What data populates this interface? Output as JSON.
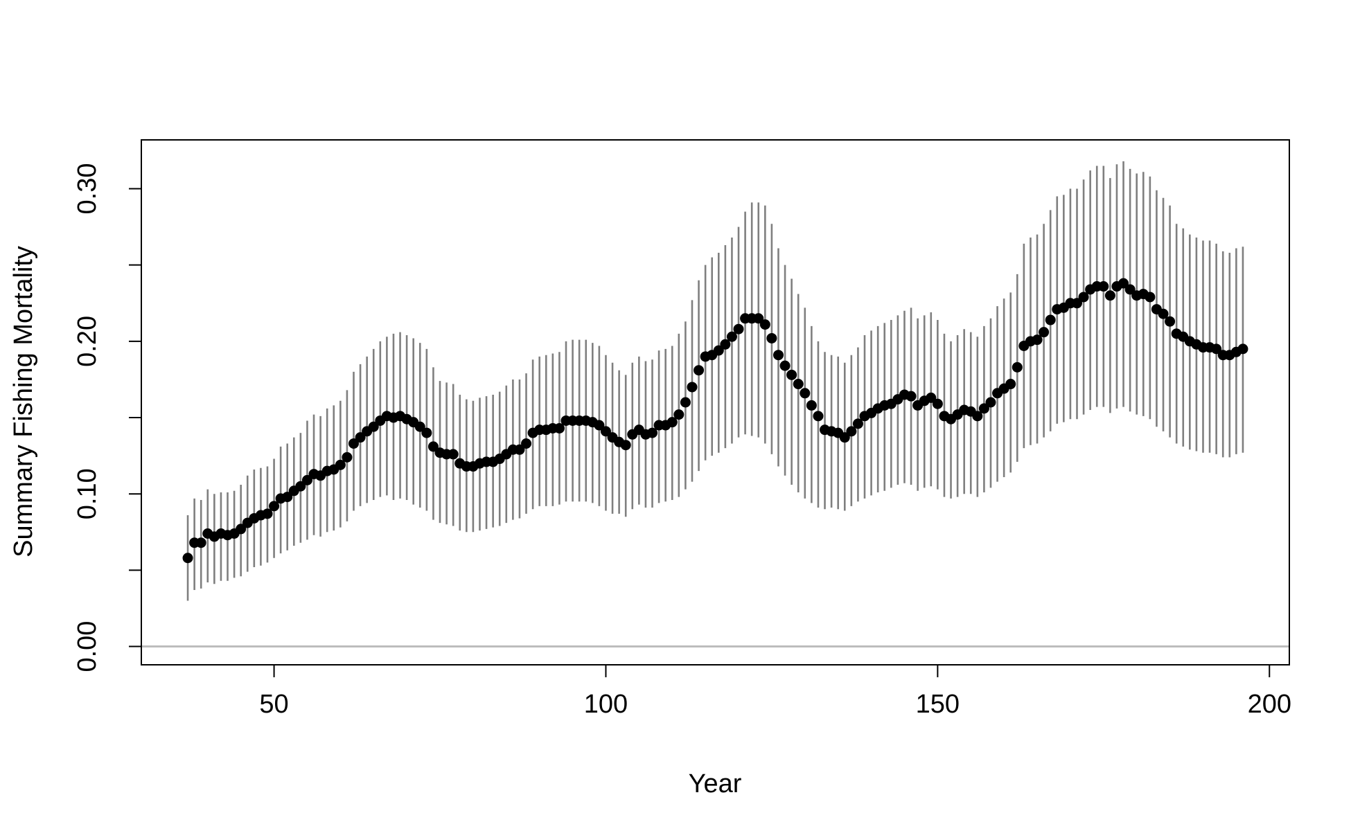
{
  "chart_data": {
    "type": "scatter",
    "title": "",
    "xlabel": "Year",
    "ylabel": "Summary Fishing Mortality",
    "xlim": [
      30,
      203
    ],
    "ylim": [
      -0.012,
      0.332
    ],
    "x_ticks": [
      50,
      100,
      150,
      200
    ],
    "x_tick_labels": [
      "50",
      "100",
      "150",
      "200"
    ],
    "y_ticks": [
      0.0,
      0.05,
      0.1,
      0.15,
      0.2,
      0.25,
      0.3
    ],
    "y_tick_labels": [
      "0.00",
      "",
      "0.10",
      "",
      "0.20",
      "",
      "0.30"
    ],
    "reference_line": {
      "y": 0,
      "color": "#bdbdbd"
    },
    "colors": {
      "points": "#000000",
      "error_bars": "#7f7f7f",
      "axes": "#000000"
    },
    "grid": false,
    "legend": "none",
    "series": [
      {
        "x": [
          37,
          38,
          39,
          40,
          41,
          42,
          43,
          44,
          45,
          46,
          47,
          48,
          49,
          50,
          51,
          52,
          53,
          54,
          55,
          56,
          57,
          58,
          59,
          60,
          61,
          62,
          63,
          64,
          65,
          66,
          67,
          68,
          69,
          70,
          71,
          72,
          73,
          74,
          75,
          76,
          77,
          78,
          79,
          80,
          81,
          82,
          83,
          84,
          85,
          86,
          87,
          88,
          89,
          90,
          91,
          92,
          93,
          94,
          95,
          96,
          97,
          98,
          99,
          100,
          101,
          102,
          103,
          104,
          105,
          106,
          107,
          108,
          109,
          110,
          111,
          112,
          113,
          114,
          115,
          116,
          117,
          118,
          119,
          120,
          121,
          122,
          123,
          124,
          125,
          126,
          127,
          128,
          129,
          130,
          131,
          132,
          133,
          134,
          135,
          136,
          137,
          138,
          139,
          140,
          141,
          142,
          143,
          144,
          145,
          146,
          147,
          148,
          149,
          150,
          151,
          152,
          153,
          154,
          155,
          156,
          157,
          158,
          159,
          160,
          161,
          162,
          163,
          164,
          165,
          166,
          167,
          168,
          169,
          170,
          171,
          172,
          173,
          174,
          175,
          176,
          177,
          178,
          179,
          180,
          181,
          182,
          183,
          184,
          185,
          186,
          187,
          188,
          189,
          190,
          191,
          192,
          193,
          194,
          195,
          196
        ],
        "y": [
          0.058,
          0.068,
          0.068,
          0.074,
          0.072,
          0.074,
          0.073,
          0.074,
          0.077,
          0.081,
          0.084,
          0.086,
          0.087,
          0.092,
          0.097,
          0.098,
          0.102,
          0.105,
          0.109,
          0.113,
          0.112,
          0.115,
          0.116,
          0.119,
          0.124,
          0.133,
          0.137,
          0.141,
          0.144,
          0.148,
          0.151,
          0.15,
          0.151,
          0.149,
          0.147,
          0.144,
          0.14,
          0.131,
          0.127,
          0.126,
          0.126,
          0.12,
          0.118,
          0.118,
          0.12,
          0.121,
          0.121,
          0.123,
          0.126,
          0.129,
          0.129,
          0.133,
          0.14,
          0.142,
          0.142,
          0.143,
          0.143,
          0.148,
          0.148,
          0.148,
          0.148,
          0.147,
          0.145,
          0.141,
          0.137,
          0.134,
          0.132,
          0.139,
          0.142,
          0.139,
          0.14,
          0.145,
          0.145,
          0.147,
          0.152,
          0.16,
          0.17,
          0.181,
          0.19,
          0.191,
          0.194,
          0.198,
          0.203,
          0.208,
          0.215,
          0.215,
          0.215,
          0.211,
          0.202,
          0.191,
          0.184,
          0.178,
          0.172,
          0.166,
          0.158,
          0.151,
          0.142,
          0.141,
          0.14,
          0.137,
          0.141,
          0.146,
          0.151,
          0.153,
          0.156,
          0.158,
          0.159,
          0.162,
          0.165,
          0.164,
          0.158,
          0.161,
          0.163,
          0.159,
          0.151,
          0.149,
          0.152,
          0.155,
          0.154,
          0.151,
          0.156,
          0.16,
          0.166,
          0.169,
          0.172,
          0.183,
          0.197,
          0.2,
          0.201,
          0.206,
          0.214,
          0.221,
          0.222,
          0.225,
          0.225,
          0.229,
          0.234,
          0.236,
          0.236,
          0.23,
          0.236,
          0.238,
          0.234,
          0.23,
          0.231,
          0.229,
          0.221,
          0.218,
          0.213,
          0.205,
          0.203,
          0.2,
          0.198,
          0.196,
          0.196,
          0.195,
          0.191,
          0.191,
          0.193,
          0.195
        ],
        "lower": [
          0.03,
          0.037,
          0.038,
          0.042,
          0.041,
          0.043,
          0.043,
          0.045,
          0.046,
          0.049,
          0.052,
          0.053,
          0.055,
          0.058,
          0.061,
          0.063,
          0.066,
          0.068,
          0.07,
          0.073,
          0.072,
          0.075,
          0.076,
          0.078,
          0.082,
          0.089,
          0.092,
          0.094,
          0.096,
          0.098,
          0.099,
          0.096,
          0.097,
          0.096,
          0.093,
          0.091,
          0.089,
          0.083,
          0.081,
          0.08,
          0.079,
          0.076,
          0.075,
          0.075,
          0.076,
          0.077,
          0.078,
          0.079,
          0.081,
          0.083,
          0.084,
          0.087,
          0.09,
          0.092,
          0.092,
          0.092,
          0.093,
          0.095,
          0.095,
          0.095,
          0.095,
          0.094,
          0.092,
          0.089,
          0.087,
          0.087,
          0.085,
          0.09,
          0.093,
          0.091,
          0.091,
          0.094,
          0.095,
          0.096,
          0.098,
          0.103,
          0.108,
          0.115,
          0.122,
          0.125,
          0.127,
          0.13,
          0.133,
          0.137,
          0.139,
          0.138,
          0.137,
          0.133,
          0.126,
          0.118,
          0.112,
          0.106,
          0.101,
          0.097,
          0.094,
          0.091,
          0.09,
          0.091,
          0.09,
          0.089,
          0.092,
          0.095,
          0.097,
          0.099,
          0.101,
          0.102,
          0.104,
          0.106,
          0.107,
          0.106,
          0.102,
          0.104,
          0.105,
          0.103,
          0.098,
          0.097,
          0.098,
          0.1,
          0.1,
          0.098,
          0.101,
          0.104,
          0.108,
          0.111,
          0.114,
          0.121,
          0.13,
          0.132,
          0.133,
          0.137,
          0.141,
          0.146,
          0.147,
          0.149,
          0.149,
          0.152,
          0.155,
          0.157,
          0.157,
          0.153,
          0.156,
          0.157,
          0.154,
          0.152,
          0.151,
          0.149,
          0.144,
          0.141,
          0.137,
          0.133,
          0.131,
          0.129,
          0.128,
          0.127,
          0.127,
          0.126,
          0.124,
          0.124,
          0.126,
          0.127
        ],
        "upper": [
          0.086,
          0.097,
          0.096,
          0.103,
          0.1,
          0.101,
          0.101,
          0.102,
          0.106,
          0.112,
          0.116,
          0.117,
          0.118,
          0.123,
          0.131,
          0.133,
          0.137,
          0.14,
          0.148,
          0.152,
          0.151,
          0.156,
          0.158,
          0.161,
          0.168,
          0.18,
          0.185,
          0.19,
          0.195,
          0.2,
          0.203,
          0.205,
          0.206,
          0.204,
          0.202,
          0.199,
          0.195,
          0.183,
          0.174,
          0.173,
          0.172,
          0.165,
          0.162,
          0.161,
          0.163,
          0.164,
          0.165,
          0.167,
          0.171,
          0.175,
          0.175,
          0.179,
          0.188,
          0.19,
          0.191,
          0.192,
          0.193,
          0.2,
          0.201,
          0.201,
          0.201,
          0.199,
          0.197,
          0.191,
          0.186,
          0.181,
          0.178,
          0.186,
          0.19,
          0.187,
          0.188,
          0.194,
          0.195,
          0.197,
          0.205,
          0.213,
          0.227,
          0.24,
          0.25,
          0.255,
          0.258,
          0.263,
          0.268,
          0.275,
          0.285,
          0.291,
          0.291,
          0.289,
          0.277,
          0.261,
          0.25,
          0.241,
          0.231,
          0.222,
          0.21,
          0.2,
          0.193,
          0.191,
          0.19,
          0.186,
          0.191,
          0.196,
          0.204,
          0.207,
          0.21,
          0.212,
          0.214,
          0.217,
          0.22,
          0.222,
          0.215,
          0.217,
          0.219,
          0.214,
          0.205,
          0.2,
          0.204,
          0.208,
          0.206,
          0.203,
          0.21,
          0.215,
          0.223,
          0.228,
          0.232,
          0.244,
          0.264,
          0.268,
          0.27,
          0.277,
          0.286,
          0.295,
          0.296,
          0.3,
          0.3,
          0.306,
          0.312,
          0.315,
          0.315,
          0.307,
          0.316,
          0.318,
          0.313,
          0.31,
          0.311,
          0.308,
          0.299,
          0.294,
          0.289,
          0.277,
          0.274,
          0.27,
          0.268,
          0.266,
          0.266,
          0.264,
          0.259,
          0.258,
          0.261,
          0.262
        ]
      }
    ]
  }
}
